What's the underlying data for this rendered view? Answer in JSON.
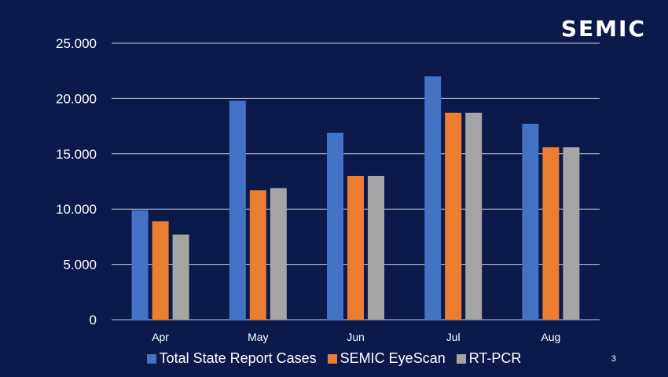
{
  "logo_text": "SEMIC",
  "page_number": "3",
  "colors": {
    "background": "#0b1a4b",
    "gridline": "#c9ccd6",
    "text": "#ffffff"
  },
  "chart_data": {
    "type": "bar",
    "categories": [
      "Apr",
      "May",
      "Jun",
      "Jul",
      "Aug"
    ],
    "series": [
      {
        "name": "Total State Report Cases",
        "color": "#4472c4",
        "values": [
          9900,
          19800,
          16900,
          22000,
          17700
        ]
      },
      {
        "name": "SEMIC EyeScan",
        "color": "#ed7d31",
        "values": [
          8900,
          11700,
          13000,
          18700,
          15600
        ]
      },
      {
        "name": "RT-PCR",
        "color": "#a5a5a5",
        "values": [
          7700,
          11900,
          13000,
          18700,
          15600
        ]
      }
    ],
    "ylim": [
      0,
      25000
    ],
    "yticks": [
      0,
      5000,
      10000,
      15000,
      20000,
      25000
    ],
    "ytick_labels": [
      "0",
      "5.000",
      "10.000",
      "15.000",
      "20.000",
      "25.000"
    ],
    "grid": true,
    "legend_position": "bottom"
  }
}
